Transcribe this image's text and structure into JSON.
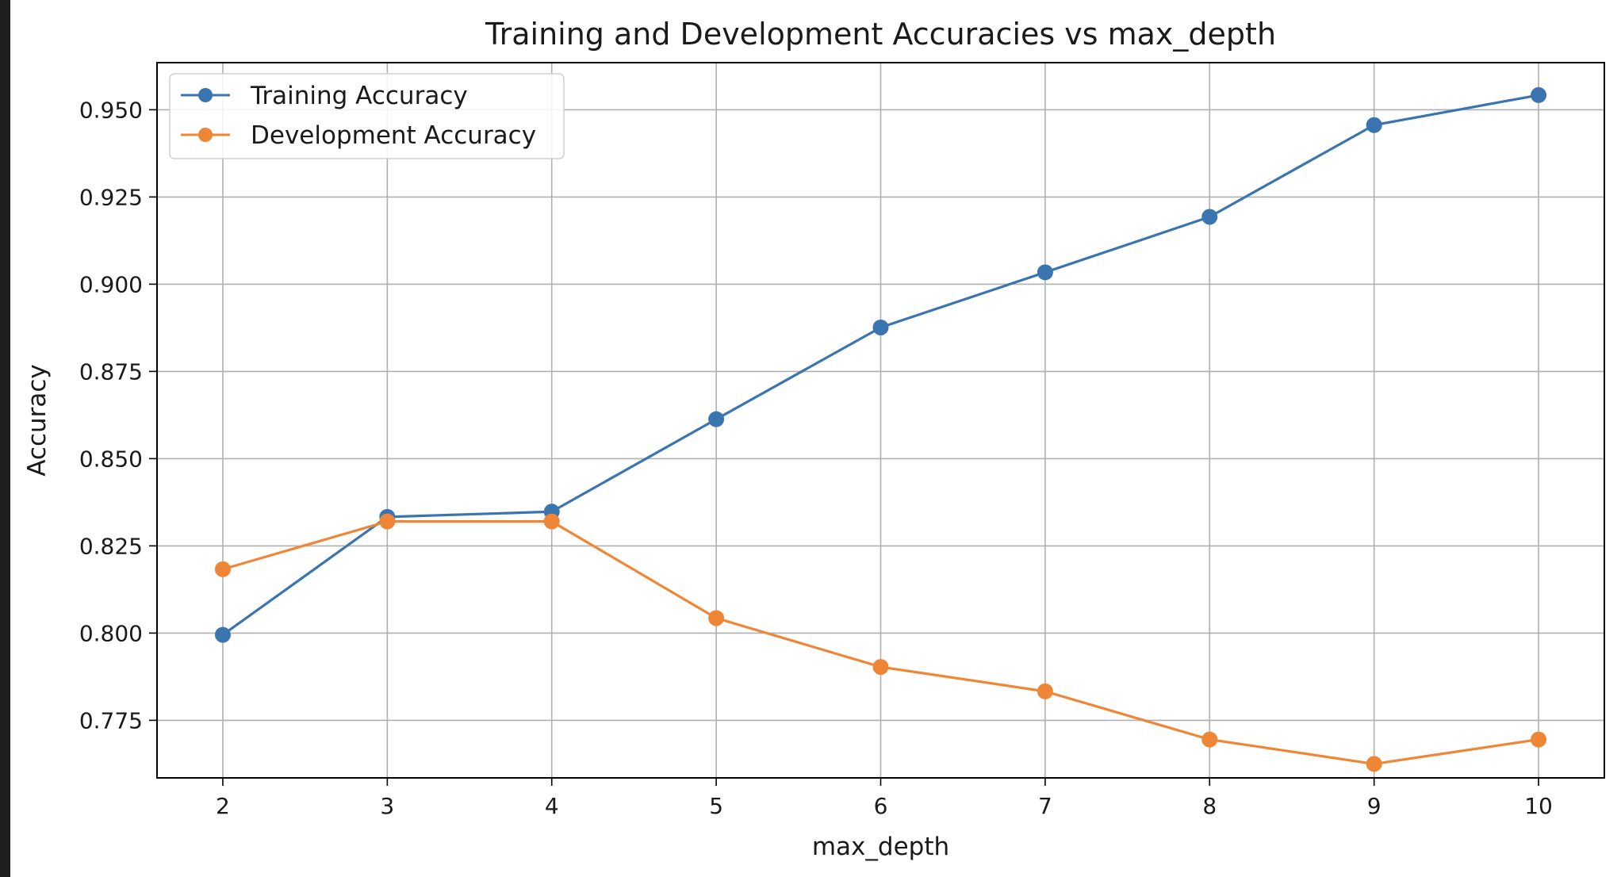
{
  "chart_data": {
    "type": "line",
    "title": "Training and Development Accuracies vs max_depth",
    "xlabel": "max_depth",
    "ylabel": "Accuracy",
    "x": [
      2,
      3,
      4,
      5,
      6,
      7,
      8,
      9,
      10
    ],
    "xlim": [
      1.6,
      10.4
    ],
    "ylim": [
      0.7585,
      0.9635
    ],
    "xticks": [
      "2",
      "3",
      "4",
      "5",
      "6",
      "7",
      "8",
      "9",
      "10"
    ],
    "yticks": [
      "0.775",
      "0.800",
      "0.825",
      "0.850",
      "0.875",
      "0.900",
      "0.925",
      "0.950"
    ],
    "grid": true,
    "legend_position": "upper-left",
    "series": [
      {
        "name": "Training Accuracy",
        "color": "#3a75af",
        "values": [
          0.7995,
          0.8333,
          0.8348,
          0.8613,
          0.8876,
          0.9034,
          0.9193,
          0.9456,
          0.9542
        ]
      },
      {
        "name": "Development Accuracy",
        "color": "#ef8636",
        "values": [
          0.8183,
          0.832,
          0.832,
          0.8043,
          0.7903,
          0.7833,
          0.7695,
          0.7625,
          0.7695
        ]
      }
    ]
  }
}
